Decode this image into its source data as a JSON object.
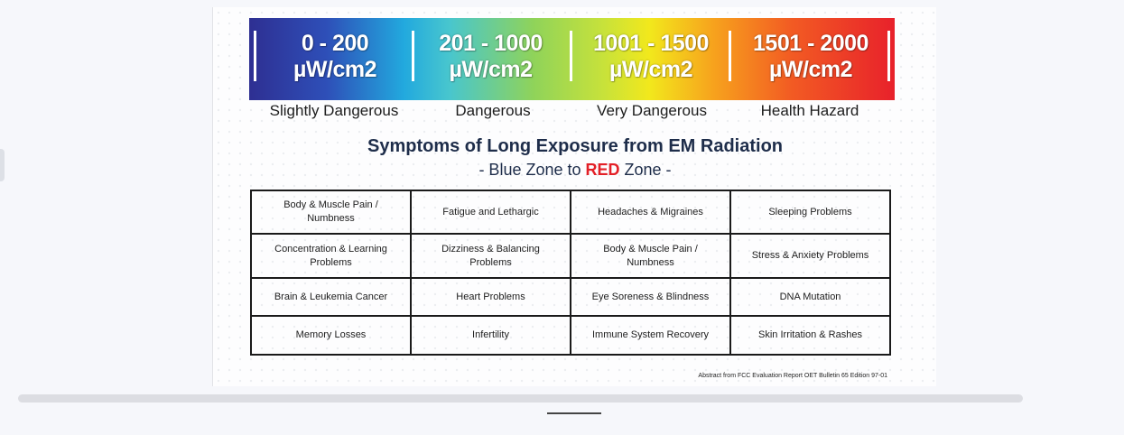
{
  "scale": {
    "ranges": [
      {
        "line1": "0 - 200",
        "line2": "µW/cm2"
      },
      {
        "line1": "201 - 1000",
        "line2": "µW/cm2"
      },
      {
        "line1": "1001 - 1500",
        "line2": "µW/cm2"
      },
      {
        "line1": "1501 - 2000",
        "line2": "µW/cm2"
      }
    ],
    "zones": [
      "Slightly Dangerous",
      "Dangerous",
      "Very Dangerous",
      "Health Hazard"
    ]
  },
  "heading": "Symptoms of Long Exposure from EM Radiation",
  "subheading": {
    "prefix": "- Blue Zone to ",
    "red_word": "RED",
    "suffix": " Zone -"
  },
  "symptoms": [
    [
      "Body & Muscle Pain / Numbness",
      "Fatigue and Lethargic",
      "Headaches & Migraines",
      "Sleeping Problems"
    ],
    [
      "Concentration & Learning Problems",
      "Dizziness & Balancing Problems",
      "Body & Muscle Pain / Numbness",
      "Stress & Anxiety Problems"
    ],
    [
      "Brain & Leukemia Cancer",
      "Heart Problems",
      "Eye Soreness & Blindness",
      "DNA Mutation"
    ],
    [
      "Memory Losses",
      "Infertility",
      "Immune System Recovery",
      "Skin Irritation & Rashes"
    ]
  ],
  "source": "Abstract from FCC Evaluation Report OET Bulletin 65 Edition 97-01",
  "colors": {
    "accent_red": "#e32027",
    "heading": "#1e2d4a"
  }
}
